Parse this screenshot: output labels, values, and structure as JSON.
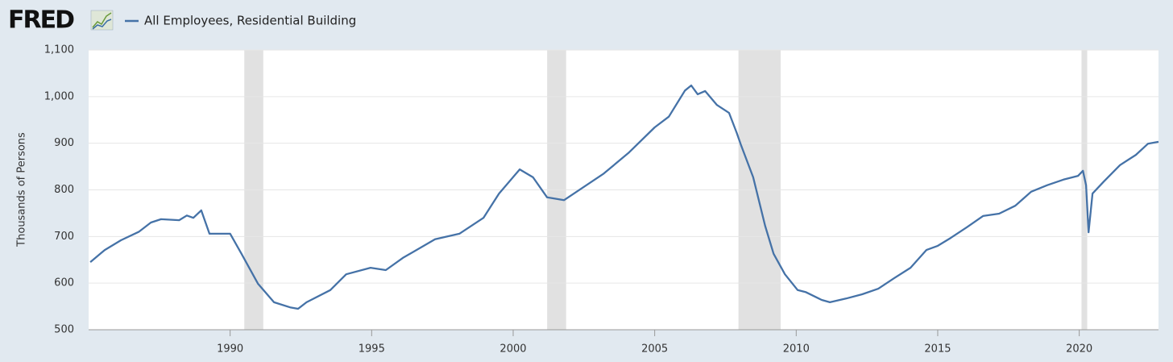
{
  "chart_data": {
    "type": "line",
    "logo": "FRED",
    "y_label": "Thousands of Persons",
    "x": [
      1985.06,
      1985.57,
      1986.14,
      1986.77,
      1987.2,
      1987.56,
      1988.2,
      1988.47,
      1988.7,
      1988.98,
      1989.27,
      1990.0,
      1990.4,
      1990.98,
      1991.55,
      1992.12,
      1992.4,
      1992.7,
      1993.54,
      1994.1,
      1994.96,
      1995.5,
      1996.1,
      1997.24,
      1998.1,
      1998.95,
      1999.5,
      2000.23,
      2000.7,
      2001.2,
      2001.8,
      2003.2,
      2004.07,
      2005.0,
      2005.5,
      2006.07,
      2006.29,
      2006.52,
      2006.78,
      2007.2,
      2007.63,
      2007.9,
      2008.05,
      2008.48,
      2008.9,
      2009.2,
      2009.6,
      2010.05,
      2010.33,
      2010.9,
      2011.19,
      2011.76,
      2012.33,
      2012.9,
      2013.47,
      2014.04,
      2014.6,
      2015.0,
      2015.46,
      2016.03,
      2016.6,
      2017.17,
      2017.74,
      2018.3,
      2018.87,
      2019.44,
      2019.96,
      2020.13,
      2020.24,
      2020.33,
      2020.47,
      2020.87,
      2021.44,
      2022.0,
      2022.43,
      2022.8
    ],
    "series": [
      {
        "name": "All Employees, Residential Building",
        "color": "#4572a7",
        "values": [
          645,
          671,
          692,
          710,
          730,
          737,
          735,
          745,
          740,
          756,
          706,
          706,
          663,
          599,
          559,
          548,
          545,
          559,
          585,
          619,
          633,
          628,
          654,
          694,
          706,
          740,
          792,
          844,
          827,
          784,
          778,
          835,
          879,
          934,
          957,
          1013,
          1024,
          1005,
          1012,
          982,
          965,
          922,
          896,
          827,
          723,
          663,
          619,
          585,
          581,
          564,
          559,
          567,
          576,
          588,
          611,
          633,
          671,
          680,
          697,
          720,
          744,
          749,
          766,
          796,
          810,
          822,
          830,
          841,
          810,
          709,
          792,
          818,
          853,
          875,
          899,
          903
        ]
      }
    ],
    "recessions": [
      [
        1990.5,
        1991.17
      ],
      [
        2001.2,
        2001.87
      ],
      [
        2007.96,
        2009.45
      ],
      [
        2020.08,
        2020.28
      ]
    ],
    "xlim": [
      1985,
      2022.8
    ],
    "xticks": [
      1990,
      1995,
      2000,
      2005,
      2010,
      2015,
      2020
    ],
    "ylim": [
      500,
      1100
    ],
    "yticks": [
      500,
      600,
      700,
      800,
      900,
      {
        "value": 1000,
        "label": "1,000"
      },
      {
        "value": 1100,
        "label": "1,100"
      }
    ],
    "grid": true
  }
}
